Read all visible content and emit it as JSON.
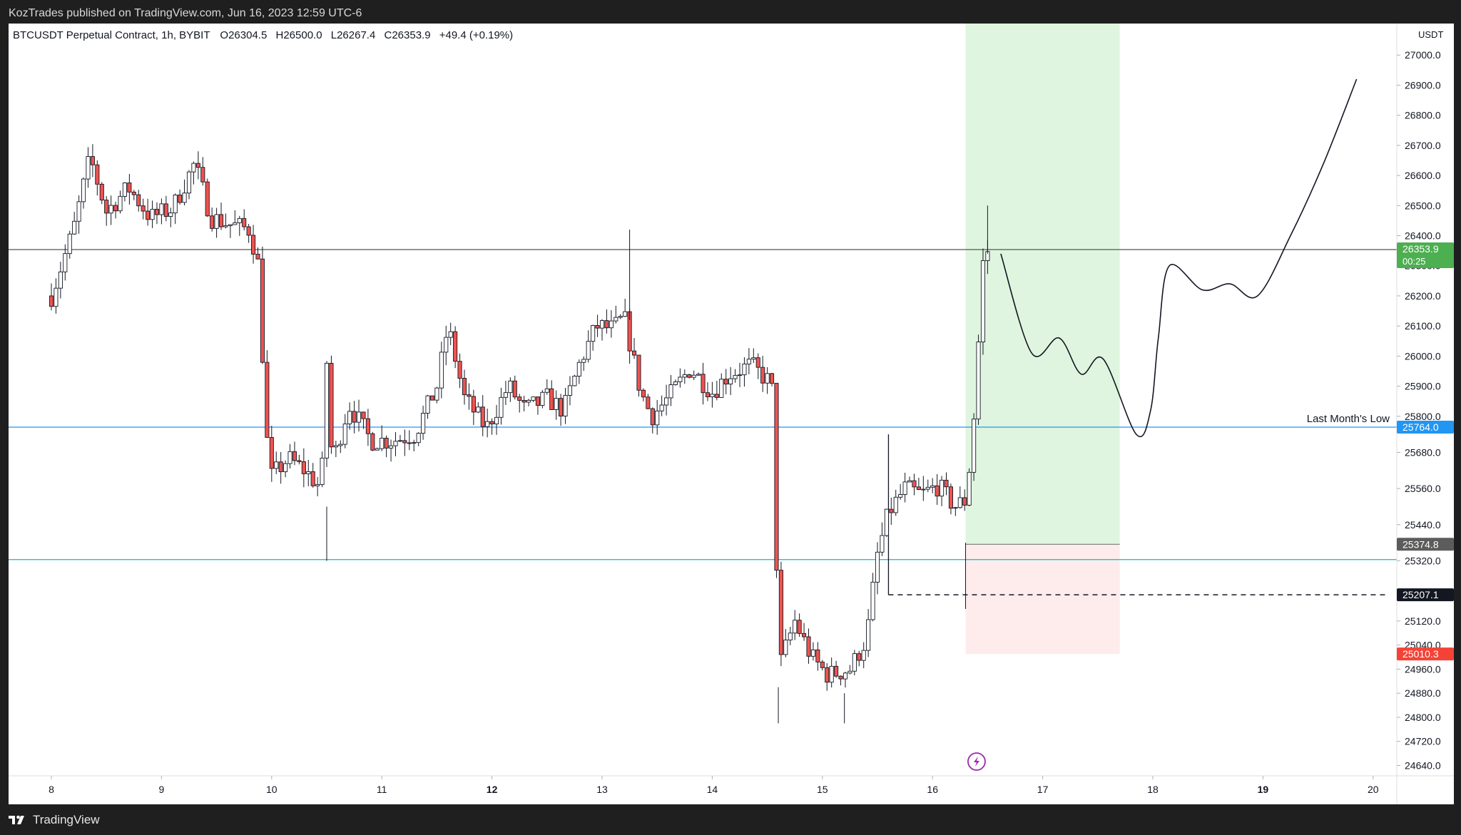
{
  "header": {
    "published": "KozTrades published on TradingView.com, Jun 16, 2023 12:59 UTC-6"
  },
  "footer": {
    "brand": "TradingView",
    "logo_icon": "tradingview-logo-icon"
  },
  "symbol_info": {
    "title": "BTCUSDT Perpetual Contract, 1h, BYBIT",
    "open_label": "O",
    "open": "26304.5",
    "high_label": "H",
    "high": "26500.0",
    "low_label": "L",
    "low": "26267.4",
    "close_label": "C",
    "close": "26353.9",
    "change": "+49.4 (+0.19%)"
  },
  "colors": {
    "up": "#26a69a",
    "down": "#ef5350",
    "candle_body_up": "#ffffff",
    "profit_zone": "#dff5df",
    "loss_zone": "#fdeceb",
    "monthly_low_line": "#2196f3",
    "support_line": "#00bcd4",
    "stop_label": "#f44336",
    "current_price_label": "#4caf50"
  },
  "chart_data": {
    "type": "candlestick",
    "currency": "USDT",
    "x_tick_labels": [
      "8",
      "9",
      "10",
      "11",
      "12",
      "13",
      "14",
      "15",
      "16",
      "17",
      "18",
      "19",
      "20"
    ],
    "x_bold_labels": [
      "12",
      "19"
    ],
    "y_tick_labels": [
      "24640.0",
      "24720.0",
      "24800.0",
      "24880.0",
      "24960.0",
      "25040.0",
      "25120.0",
      "25320.0",
      "25440.0",
      "25560.0",
      "25680.0",
      "25800.0",
      "25900.0",
      "26000.0",
      "26100.0",
      "26200.0",
      "26300.0",
      "26400.0",
      "26500.0",
      "26600.0",
      "26700.0",
      "26800.0",
      "26900.0",
      "27000.0"
    ],
    "ylim": [
      24600,
      27020
    ],
    "price_labels": [
      {
        "name": "current-price-label",
        "value": 26353.9,
        "text": "26353.9",
        "sub": "00:25",
        "color": "#4caf50"
      },
      {
        "name": "monthly-low-label",
        "value": 25764.0,
        "text": "25764.0",
        "color": "#2196f3"
      },
      {
        "name": "target-entry-label",
        "value": 25374.8,
        "text": "25374.8",
        "color": "#5c5c5c"
      },
      {
        "name": "limit-order-label",
        "value": 25207.1,
        "text": "25207.1",
        "color": "#131722"
      },
      {
        "name": "stop-loss-label",
        "value": 25010.3,
        "text": "25010.3",
        "color": "#f44336"
      }
    ],
    "horizontal_lines": [
      {
        "name": "current-price-line",
        "value": 26353.9,
        "color": "#555555"
      },
      {
        "name": "monthly-low-line",
        "value": 25764.0,
        "color": "#2196f3",
        "label": "Last Month's Low"
      },
      {
        "name": "support-line",
        "value": 25324.0,
        "color": "#00bcd4"
      }
    ],
    "position": {
      "entry": 25374.8,
      "target": 27020,
      "stop": 25010.3,
      "start_day": 16.3,
      "end_day": 17.7,
      "order_price": 25207.1,
      "order_from_day": 15.6
    },
    "ohlc_hourly_anchors": [
      {
        "d": 8.0,
        "p": 26200
      },
      {
        "d": 8.2,
        "p": 26420
      },
      {
        "d": 8.35,
        "p": 26660
      },
      {
        "d": 8.5,
        "p": 26480
      },
      {
        "d": 8.7,
        "p": 26560
      },
      {
        "d": 8.9,
        "p": 26460
      },
      {
        "d": 9.1,
        "p": 26490
      },
      {
        "d": 9.3,
        "p": 26640
      },
      {
        "d": 9.45,
        "p": 26460
      },
      {
        "d": 9.6,
        "p": 26440
      },
      {
        "d": 9.8,
        "p": 26420
      },
      {
        "d": 9.88,
        "p": 26300
      },
      {
        "d": 9.95,
        "p": 25740
      },
      {
        "d": 10.0,
        "p": 25600
      },
      {
        "d": 10.15,
        "p": 25660
      },
      {
        "d": 10.3,
        "p": 25620
      },
      {
        "d": 10.45,
        "p": 25560
      },
      {
        "d": 10.5,
        "p": 25980
      },
      {
        "d": 10.55,
        "p": 25640
      },
      {
        "d": 10.7,
        "p": 25840
      },
      {
        "d": 10.9,
        "p": 25720
      },
      {
        "d": 11.1,
        "p": 25720
      },
      {
        "d": 11.3,
        "p": 25740
      },
      {
        "d": 11.5,
        "p": 25900
      },
      {
        "d": 11.6,
        "p": 26100
      },
      {
        "d": 11.75,
        "p": 25860
      },
      {
        "d": 11.95,
        "p": 25760
      },
      {
        "d": 12.15,
        "p": 25900
      },
      {
        "d": 12.3,
        "p": 25820
      },
      {
        "d": 12.5,
        "p": 25860
      },
      {
        "d": 12.65,
        "p": 25820
      },
      {
        "d": 12.8,
        "p": 25980
      },
      {
        "d": 12.95,
        "p": 26100
      },
      {
        "d": 13.1,
        "p": 26090
      },
      {
        "d": 13.2,
        "p": 26130
      },
      {
        "d": 13.35,
        "p": 25880
      },
      {
        "d": 13.45,
        "p": 25800
      },
      {
        "d": 13.6,
        "p": 25860
      },
      {
        "d": 13.8,
        "p": 25960
      },
      {
        "d": 14.0,
        "p": 25880
      },
      {
        "d": 14.15,
        "p": 25940
      },
      {
        "d": 14.35,
        "p": 25970
      },
      {
        "d": 14.5,
        "p": 25920
      },
      {
        "d": 14.55,
        "p": 25880
      },
      {
        "d": 14.58,
        "p": 25380
      },
      {
        "d": 14.6,
        "p": 24960
      },
      {
        "d": 14.75,
        "p": 25120
      },
      {
        "d": 14.9,
        "p": 25000
      },
      {
        "d": 15.05,
        "p": 24940
      },
      {
        "d": 15.25,
        "p": 24960
      },
      {
        "d": 15.4,
        "p": 25060
      },
      {
        "d": 15.5,
        "p": 25340
      },
      {
        "d": 15.6,
        "p": 25480
      },
      {
        "d": 15.75,
        "p": 25560
      },
      {
        "d": 15.9,
        "p": 25540
      },
      {
        "d": 16.05,
        "p": 25570
      },
      {
        "d": 16.2,
        "p": 25500
      },
      {
        "d": 16.3,
        "p": 25520
      },
      {
        "d": 16.35,
        "p": 25680
      },
      {
        "d": 16.4,
        "p": 25920
      },
      {
        "d": 16.45,
        "p": 26300
      },
      {
        "d": 16.5,
        "p": 26350
      }
    ],
    "projection_path": [
      {
        "d": 16.62,
        "p": 26340
      },
      {
        "d": 16.9,
        "p": 26010
      },
      {
        "d": 17.15,
        "p": 26060
      },
      {
        "d": 17.35,
        "p": 25940
      },
      {
        "d": 17.55,
        "p": 25990
      },
      {
        "d": 17.85,
        "p": 25740
      },
      {
        "d": 17.98,
        "p": 25820
      },
      {
        "d": 18.05,
        "p": 26060
      },
      {
        "d": 18.15,
        "p": 26300
      },
      {
        "d": 18.45,
        "p": 26220
      },
      {
        "d": 18.7,
        "p": 26240
      },
      {
        "d": 18.95,
        "p": 26200
      },
      {
        "d": 19.25,
        "p": 26400
      },
      {
        "d": 19.55,
        "p": 26640
      },
      {
        "d": 19.85,
        "p": 26920
      }
    ],
    "annotations": [
      {
        "text": "Last Month's Low"
      }
    ]
  }
}
